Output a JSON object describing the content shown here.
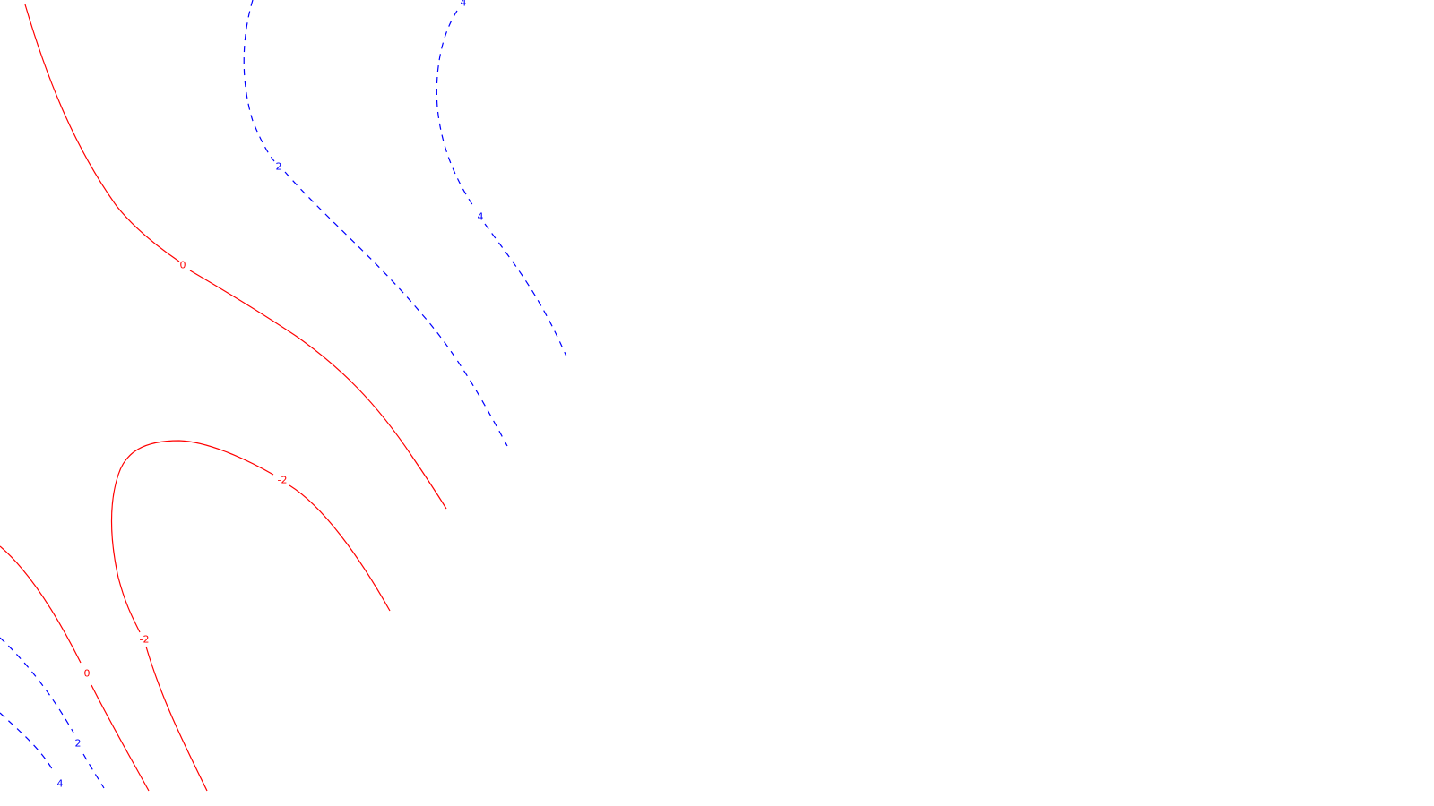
{
  "chart_data": {
    "type": "contour",
    "title": "",
    "xlabel": "",
    "ylabel": "",
    "grid": false,
    "legend": false,
    "colors": {
      "positive": "#0000ff",
      "nonpositive": "#ff0000"
    },
    "styles": {
      "positive": "dashed",
      "nonpositive": "solid"
    },
    "contours": [
      {
        "level": 0,
        "label": "0",
        "style": "solid",
        "color": "#ff0000"
      },
      {
        "level": 2,
        "label": "2",
        "style": "dashed",
        "color": "#0000ff"
      },
      {
        "level": 4,
        "label": "4",
        "style": "dashed",
        "color": "#0000ff"
      },
      {
        "level": -2,
        "label": "-2",
        "style": "solid",
        "color": "#ff0000"
      },
      {
        "level": 0,
        "label": "0",
        "style": "solid",
        "color": "#ff0000"
      },
      {
        "level": 2,
        "label": "2",
        "style": "dashed",
        "color": "#0000ff"
      },
      {
        "level": 4,
        "label": "4",
        "style": "dashed",
        "color": "#0000ff"
      }
    ]
  }
}
